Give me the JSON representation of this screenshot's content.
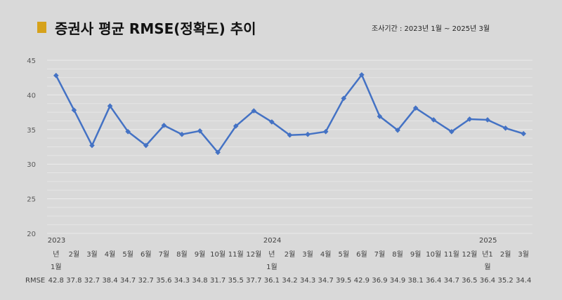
{
  "header": {
    "title": "증권사 평균 RMSE(정확도) 추이",
    "period": "조사기간 : 2023년 1월 ~ 2025년 3월"
  },
  "colors": {
    "background": "#d9d9d9",
    "accent": "#d6a21b",
    "line": "#4472c4",
    "grid": "#f2f2f2"
  },
  "chart_data": {
    "type": "line",
    "title": "증권사 평균 RMSE(정확도) 추이",
    "xlabel": "",
    "ylabel": "",
    "ylim": [
      20,
      45
    ],
    "yticks": [
      20,
      25,
      30,
      35,
      40,
      45
    ],
    "grid": true,
    "legend": "none",
    "categories": [
      "1월",
      "2월",
      "3월",
      "4월",
      "5월",
      "6월",
      "7월",
      "8월",
      "9월",
      "10월",
      "11월",
      "12월",
      "1월",
      "2월",
      "3월",
      "4월",
      "5월",
      "6월",
      "7월",
      "8월",
      "9월",
      "10월",
      "11월",
      "12월",
      "1월",
      "2월",
      "3월"
    ],
    "category_labels": [
      {
        "top": "년",
        "bottom": "1월"
      },
      {
        "top": "2월",
        "bottom": ""
      },
      {
        "top": "3월",
        "bottom": ""
      },
      {
        "top": "4월",
        "bottom": ""
      },
      {
        "top": "5월",
        "bottom": ""
      },
      {
        "top": "6월",
        "bottom": ""
      },
      {
        "top": "7월",
        "bottom": ""
      },
      {
        "top": "8월",
        "bottom": ""
      },
      {
        "top": "9월",
        "bottom": ""
      },
      {
        "top": "10월",
        "bottom": ""
      },
      {
        "top": "11월",
        "bottom": ""
      },
      {
        "top": "12월",
        "bottom": ""
      },
      {
        "top": "년",
        "bottom": "1월"
      },
      {
        "top": "2월",
        "bottom": ""
      },
      {
        "top": "3월",
        "bottom": ""
      },
      {
        "top": "4월",
        "bottom": ""
      },
      {
        "top": "5월",
        "bottom": ""
      },
      {
        "top": "6월",
        "bottom": ""
      },
      {
        "top": "7월",
        "bottom": ""
      },
      {
        "top": "8월",
        "bottom": ""
      },
      {
        "top": "9월",
        "bottom": ""
      },
      {
        "top": "10월",
        "bottom": ""
      },
      {
        "top": "11월",
        "bottom": ""
      },
      {
        "top": "12월",
        "bottom": ""
      },
      {
        "top": "년1",
        "bottom": "월"
      },
      {
        "top": "2월",
        "bottom": ""
      },
      {
        "top": "3월",
        "bottom": ""
      }
    ],
    "years": [
      {
        "label": "2023",
        "index": 0
      },
      {
        "label": "2024",
        "index": 12
      },
      {
        "label": "2025",
        "index": 24
      }
    ],
    "table_label": "RMSE",
    "series": [
      {
        "name": "RMSE",
        "values": [
          42.8,
          37.8,
          32.7,
          38.4,
          34.7,
          32.7,
          35.6,
          34.3,
          34.8,
          31.7,
          35.5,
          37.7,
          36.1,
          34.2,
          34.3,
          34.7,
          39.5,
          42.9,
          36.9,
          34.9,
          38.1,
          36.4,
          34.7,
          36.5,
          36.4,
          35.2,
          34.4
        ],
        "table_values": [
          "42.8",
          "37.8",
          "32.7",
          "38.4",
          "34.7",
          "32.7",
          "35.6",
          "34.3",
          "34.8",
          "31.7",
          "35.5",
          "37.7",
          "36.1",
          "34.2",
          "34.3",
          "34.7",
          "39.5",
          "42.9",
          "36.9",
          "34.9",
          "38.1",
          "36.4",
          "34.7",
          "36.5",
          "36.4",
          "35.2",
          "34.4"
        ]
      }
    ]
  }
}
